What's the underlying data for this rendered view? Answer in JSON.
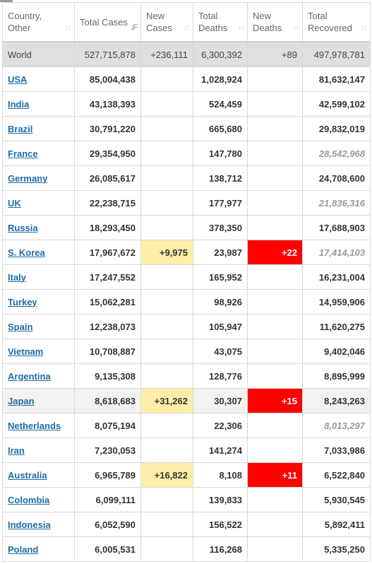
{
  "columns": [
    {
      "label": "Country, Other",
      "sort_icon": "sort-both-icon",
      "active": false
    },
    {
      "label": "Total Cases",
      "sort_icon": "sort-desc-icon",
      "active": true
    },
    {
      "label": "New Cases",
      "sort_icon": "sort-both-icon",
      "active": false
    },
    {
      "label": "Total Deaths",
      "sort_icon": "sort-both-icon",
      "active": false
    },
    {
      "label": "New Deaths",
      "sort_icon": "sort-both-icon",
      "active": false
    },
    {
      "label": "Total Recovered",
      "sort_icon": "sort-both-icon",
      "active": false
    }
  ],
  "world": {
    "country": "World",
    "total_cases": "527,715,878",
    "new_cases": "+236,111",
    "total_deaths": "6,300,392",
    "new_deaths": "+89",
    "total_recovered": "497,978,781"
  },
  "rows": [
    {
      "country": "USA",
      "total_cases": "85,004,438",
      "new_cases": "",
      "total_deaths": "1,028,924",
      "new_deaths": "",
      "total_recovered": "81,632,147",
      "recovered_estimated": false,
      "shaded": false
    },
    {
      "country": "India",
      "total_cases": "43,138,393",
      "new_cases": "",
      "total_deaths": "524,459",
      "new_deaths": "",
      "total_recovered": "42,599,102",
      "recovered_estimated": false,
      "shaded": false
    },
    {
      "country": "Brazil",
      "total_cases": "30,791,220",
      "new_cases": "",
      "total_deaths": "665,680",
      "new_deaths": "",
      "total_recovered": "29,832,019",
      "recovered_estimated": false,
      "shaded": false
    },
    {
      "country": "France",
      "total_cases": "29,354,950",
      "new_cases": "",
      "total_deaths": "147,780",
      "new_deaths": "",
      "total_recovered": "28,542,968",
      "recovered_estimated": true,
      "shaded": false
    },
    {
      "country": "Germany",
      "total_cases": "26,085,617",
      "new_cases": "",
      "total_deaths": "138,712",
      "new_deaths": "",
      "total_recovered": "24,708,600",
      "recovered_estimated": false,
      "shaded": false
    },
    {
      "country": "UK",
      "total_cases": "22,238,715",
      "new_cases": "",
      "total_deaths": "177,977",
      "new_deaths": "",
      "total_recovered": "21,836,316",
      "recovered_estimated": true,
      "shaded": false
    },
    {
      "country": "Russia",
      "total_cases": "18,293,450",
      "new_cases": "",
      "total_deaths": "378,350",
      "new_deaths": "",
      "total_recovered": "17,688,903",
      "recovered_estimated": false,
      "shaded": false
    },
    {
      "country": "S. Korea",
      "total_cases": "17,967,672",
      "new_cases": "+9,975",
      "total_deaths": "23,987",
      "new_deaths": "+22",
      "total_recovered": "17,414,103",
      "recovered_estimated": true,
      "shaded": false
    },
    {
      "country": "Italy",
      "total_cases": "17,247,552",
      "new_cases": "",
      "total_deaths": "165,952",
      "new_deaths": "",
      "total_recovered": "16,231,004",
      "recovered_estimated": false,
      "shaded": false
    },
    {
      "country": "Turkey",
      "total_cases": "15,062,281",
      "new_cases": "",
      "total_deaths": "98,926",
      "new_deaths": "",
      "total_recovered": "14,959,906",
      "recovered_estimated": false,
      "shaded": false
    },
    {
      "country": "Spain",
      "total_cases": "12,238,073",
      "new_cases": "",
      "total_deaths": "105,947",
      "new_deaths": "",
      "total_recovered": "11,620,275",
      "recovered_estimated": false,
      "shaded": false
    },
    {
      "country": "Vietnam",
      "total_cases": "10,708,887",
      "new_cases": "",
      "total_deaths": "43,075",
      "new_deaths": "",
      "total_recovered": "9,402,046",
      "recovered_estimated": false,
      "shaded": false
    },
    {
      "country": "Argentina",
      "total_cases": "9,135,308",
      "new_cases": "",
      "total_deaths": "128,776",
      "new_deaths": "",
      "total_recovered": "8,895,999",
      "recovered_estimated": false,
      "shaded": false
    },
    {
      "country": "Japan",
      "total_cases": "8,618,683",
      "new_cases": "+31,262",
      "total_deaths": "30,307",
      "new_deaths": "+15",
      "total_recovered": "8,243,263",
      "recovered_estimated": false,
      "shaded": true
    },
    {
      "country": "Netherlands",
      "total_cases": "8,075,194",
      "new_cases": "",
      "total_deaths": "22,306",
      "new_deaths": "",
      "total_recovered": "8,013,297",
      "recovered_estimated": true,
      "shaded": false
    },
    {
      "country": "Iran",
      "total_cases": "7,230,053",
      "new_cases": "",
      "total_deaths": "141,274",
      "new_deaths": "",
      "total_recovered": "7,033,986",
      "recovered_estimated": false,
      "shaded": false
    },
    {
      "country": "Australia",
      "total_cases": "6,965,789",
      "new_cases": "+16,822",
      "total_deaths": "8,108",
      "new_deaths": "+11",
      "total_recovered": "6,522,840",
      "recovered_estimated": false,
      "shaded": false
    },
    {
      "country": "Colombia",
      "total_cases": "6,099,111",
      "new_cases": "",
      "total_deaths": "139,833",
      "new_deaths": "",
      "total_recovered": "5,930,545",
      "recovered_estimated": false,
      "shaded": false
    },
    {
      "country": "Indonesia",
      "total_cases": "6,052,590",
      "new_cases": "",
      "total_deaths": "156,522",
      "new_deaths": "",
      "total_recovered": "5,892,411",
      "recovered_estimated": false,
      "shaded": false
    },
    {
      "country": "Poland",
      "total_cases": "6,005,531",
      "new_cases": "",
      "total_deaths": "116,268",
      "new_deaths": "",
      "total_recovered": "5,335,250",
      "recovered_estimated": false,
      "shaded": false
    }
  ],
  "colors": {
    "new_cases_bg": "#ffeeaa",
    "new_deaths_bg": "#ff0000",
    "link": "#1e6ca8",
    "world_row_bg": "#dfdfdf"
  }
}
